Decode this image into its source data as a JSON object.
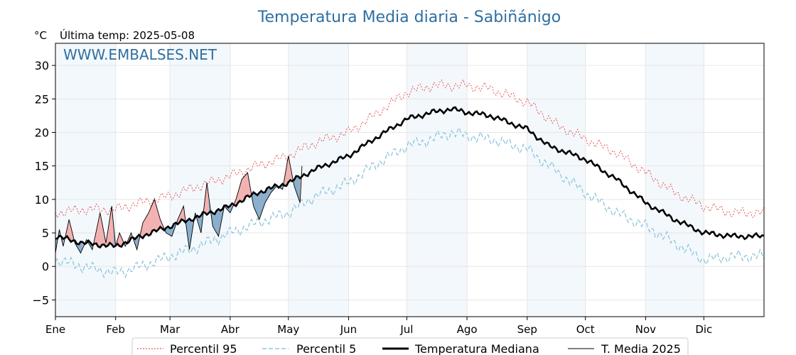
{
  "chart_data": {
    "type": "line",
    "title": "Temperatura Media diaria - Sabiñánigo",
    "unit": "°C",
    "last_temp_label": "Última temp: 2025-05-08",
    "watermark": "WWW.EMBALSES.NET",
    "ylim": [
      -7.5,
      33.3
    ],
    "yticks": [
      -5,
      0,
      5,
      10,
      15,
      20,
      25,
      30
    ],
    "x_range_days": [
      1,
      366
    ],
    "months": [
      "Ene",
      "Feb",
      "Mar",
      "Abr",
      "May",
      "Jun",
      "Jul",
      "Ago",
      "Sep",
      "Oct",
      "Nov",
      "Dic"
    ],
    "month_start_days": [
      1,
      32,
      60,
      91,
      121,
      152,
      182,
      213,
      244,
      274,
      305,
      335
    ],
    "grid": true,
    "legend_position": "bottom",
    "legend": [
      "Percentil 95",
      "Percentil 5",
      "Temperatura Mediana",
      "T. Media 2025"
    ],
    "colors": {
      "p95": "#e03030",
      "p5": "#8fc6dc",
      "median": "#000000",
      "current": "#000000",
      "above_fill": "#f2aaaa",
      "below_fill": "#7ea6c8",
      "band": "#f3f8fc"
    },
    "series": [
      {
        "name": "Percentil 95",
        "style": "dotted",
        "anchors_day": [
          1,
          15,
          32,
          45,
          60,
          75,
          91,
          105,
          121,
          135,
          152,
          165,
          182,
          195,
          205,
          213,
          225,
          244,
          260,
          274,
          290,
          305,
          320,
          335,
          350,
          366
        ],
        "anchors_value": [
          8,
          8.5,
          8.5,
          9.5,
          10.5,
          12,
          13.5,
          15,
          16.5,
          18.5,
          20,
          22.5,
          26,
          27,
          27,
          27,
          26.5,
          24.5,
          21,
          19,
          17,
          14,
          11,
          9,
          8,
          8
        ]
      },
      {
        "name": "Percentil 5",
        "style": "dashed",
        "anchors_day": [
          1,
          15,
          32,
          45,
          60,
          75,
          91,
          105,
          121,
          135,
          152,
          165,
          182,
          195,
          205,
          213,
          225,
          244,
          260,
          274,
          290,
          305,
          320,
          335,
          350,
          366
        ],
        "anchors_value": [
          1,
          0,
          -1,
          0,
          1.5,
          3,
          5,
          6.5,
          8,
          10.5,
          12.5,
          15,
          18,
          19,
          20,
          19.5,
          19,
          17.5,
          14,
          11,
          8,
          6,
          3.5,
          1,
          1.5,
          1.5
        ]
      },
      {
        "name": "Temperatura Mediana",
        "style": "solid-thick",
        "anchors_day": [
          1,
          15,
          32,
          45,
          60,
          75,
          91,
          105,
          121,
          135,
          152,
          165,
          182,
          195,
          205,
          213,
          225,
          244,
          255,
          274,
          290,
          305,
          320,
          335,
          350,
          366
        ],
        "anchors_value": [
          4.5,
          3.5,
          3,
          4.5,
          6,
          7.5,
          9,
          11,
          12.5,
          14.5,
          16.5,
          19,
          22,
          23,
          23.5,
          23,
          22.5,
          20.5,
          18,
          16,
          13,
          9.5,
          7,
          5,
          4.5,
          4.5
        ]
      },
      {
        "name": "T. Media 2025",
        "style": "solid-thin",
        "days": [
          1,
          3,
          5,
          8,
          11,
          14,
          17,
          20,
          24,
          27,
          30,
          32,
          34,
          37,
          40,
          43,
          46,
          49,
          52,
          55,
          58,
          61,
          64,
          67,
          70,
          73,
          76,
          79,
          82,
          85,
          88,
          91,
          94,
          97,
          100,
          103,
          106,
          109,
          112,
          115,
          118,
          121,
          124,
          127,
          128
        ],
        "values": [
          2,
          5.5,
          3,
          7,
          3.5,
          2,
          4,
          2.5,
          8,
          3.5,
          9,
          3,
          5,
          3,
          5,
          2.5,
          6.5,
          8,
          10,
          7,
          5,
          4.5,
          7,
          9,
          2.5,
          8,
          5,
          12.5,
          6,
          4.5,
          9,
          8,
          10,
          13,
          14,
          9,
          7,
          9.5,
          11,
          12,
          11.5,
          16.5,
          12,
          9.5,
          15
        ]
      }
    ]
  }
}
